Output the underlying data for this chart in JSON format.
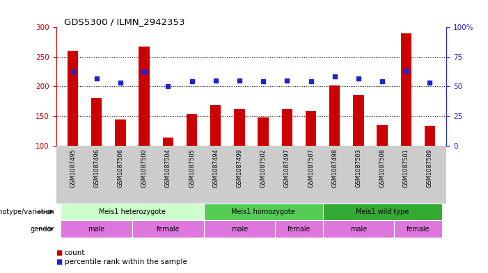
{
  "title": "GDS5300 / ILMN_2942353",
  "samples": [
    "GSM1087495",
    "GSM1087496",
    "GSM1087506",
    "GSM1087500",
    "GSM1087504",
    "GSM1087505",
    "GSM1087494",
    "GSM1087499",
    "GSM1087502",
    "GSM1087497",
    "GSM1087507",
    "GSM1087498",
    "GSM1087503",
    "GSM1087508",
    "GSM1087501",
    "GSM1087509"
  ],
  "counts": [
    260,
    181,
    144,
    267,
    113,
    154,
    169,
    162,
    148,
    162,
    158,
    202,
    185,
    135,
    290,
    134
  ],
  "percentile_y": [
    225,
    213,
    206,
    225,
    201,
    209,
    210,
    210,
    209,
    210,
    209,
    217,
    213,
    209,
    226,
    206
  ],
  "ylim_left": [
    100,
    300
  ],
  "ylim_right": [
    0,
    100
  ],
  "yticks_left": [
    100,
    150,
    200,
    250,
    300
  ],
  "yticks_right": [
    0,
    25,
    50,
    75,
    100
  ],
  "ytick_right_labels": [
    "0",
    "25",
    "50",
    "75",
    "100%"
  ],
  "bar_color": "#cc0000",
  "dot_color": "#2222cc",
  "geno_groups": [
    {
      "label": "Meis1 heterozygote",
      "start": 0,
      "end": 5,
      "color": "#ccffcc"
    },
    {
      "label": "Meis1 homozygote",
      "start": 6,
      "end": 10,
      "color": "#55cc55"
    },
    {
      "label": "Meis1 wild type",
      "start": 11,
      "end": 15,
      "color": "#33aa33"
    }
  ],
  "gender_groups": [
    {
      "label": "male",
      "start": 0,
      "end": 2
    },
    {
      "label": "female",
      "start": 3,
      "end": 5
    },
    {
      "label": "male",
      "start": 6,
      "end": 8
    },
    {
      "label": "female",
      "start": 9,
      "end": 10
    },
    {
      "label": "male",
      "start": 11,
      "end": 13
    },
    {
      "label": "female",
      "start": 14,
      "end": 15
    }
  ],
  "gender_color": "#dd77dd",
  "gray_bg": "#cccccc",
  "legend_count_label": "count",
  "legend_percentile_label": "percentile rank within the sample",
  "genotype_label": "genotype/variation",
  "gender_label": "gender"
}
